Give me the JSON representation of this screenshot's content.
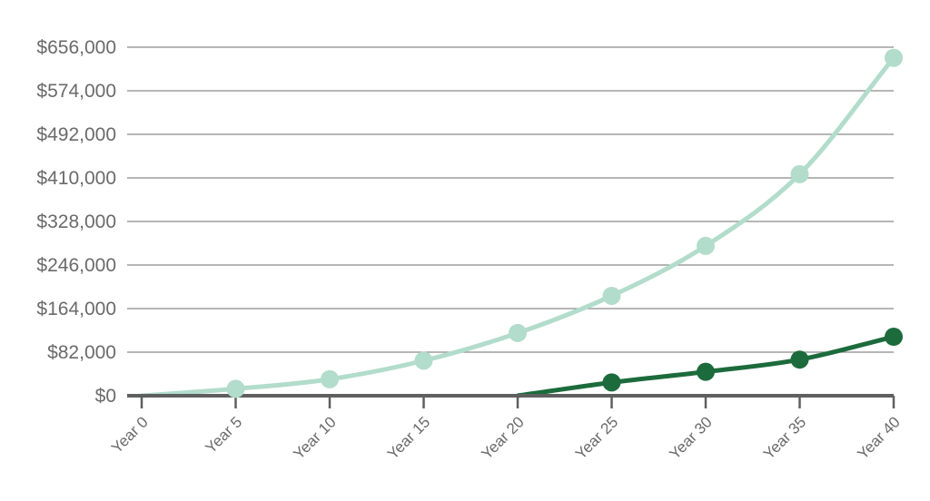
{
  "chart_data": {
    "type": "line",
    "x": [
      "Year 0",
      "Year 5",
      "Year 10",
      "Year 15",
      "Year 20",
      "Year 25",
      "Year 30",
      "Year 35",
      "Year 40"
    ],
    "yticks": [
      0,
      82000,
      164000,
      246000,
      328000,
      410000,
      492000,
      574000,
      656000
    ],
    "ytick_labels": [
      "$0",
      "$82,000",
      "$164,000",
      "$246,000",
      "$328,000",
      "$410,000",
      "$492,000",
      "$574,000",
      "$656,000"
    ],
    "ylim": [
      0,
      656000
    ],
    "grid": true,
    "series": [
      {
        "color": "#b2dccb",
        "values": [
          0,
          13000,
          31000,
          66000,
          118000,
          188000,
          282000,
          417000,
          636000
        ],
        "markers_from": 1
      },
      {
        "color": "#1c6b3c",
        "values": [
          0,
          0,
          0,
          0,
          0,
          25000,
          45000,
          68000,
          111000
        ],
        "markers_from": 5
      }
    ]
  }
}
